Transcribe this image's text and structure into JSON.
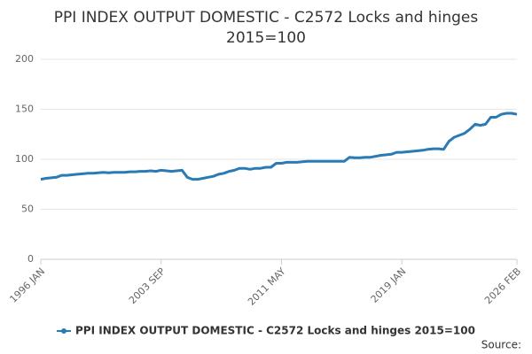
{
  "chart_data": {
    "type": "line",
    "title": [
      "PPI INDEX OUTPUT DOMESTIC - C2572 Locks and hinges",
      "2015=100"
    ],
    "source": "Source:",
    "x": [
      "1996 JAN",
      "1996 MAY",
      "1996 SEP",
      "1997 JAN",
      "1997 MAY",
      "1997 SEP",
      "1998 JAN",
      "1998 MAY",
      "1998 SEP",
      "1999 JAN",
      "1999 MAY",
      "1999 SEP",
      "2000 JAN",
      "2000 MAY",
      "2000 SEP",
      "2001 JAN",
      "2001 MAY",
      "2001 SEP",
      "2002 JAN",
      "2002 MAY",
      "2002 SEP",
      "2003 JAN",
      "2003 MAY",
      "2003 SEP",
      "2004 JAN",
      "2004 MAY",
      "2004 SEP",
      "2005 JAN",
      "2005 MAY",
      "2005 SEP",
      "2006 JAN",
      "2006 MAY",
      "2006 SEP",
      "2007 JAN",
      "2007 MAY",
      "2007 SEP",
      "2008 JAN",
      "2008 MAY",
      "2008 SEP",
      "2009 JAN",
      "2009 MAY",
      "2009 SEP",
      "2010 JAN",
      "2010 MAY",
      "2010 SEP",
      "2011 JAN",
      "2011 MAY",
      "2011 SEP",
      "2012 JAN",
      "2012 MAY",
      "2012 SEP",
      "2013 JAN",
      "2013 MAY",
      "2013 SEP",
      "2014 JAN",
      "2014 MAY",
      "2014 SEP",
      "2015 JAN",
      "2015 MAY",
      "2015 SEP",
      "2016 JAN",
      "2016 MAY",
      "2016 SEP",
      "2017 JAN",
      "2017 MAY",
      "2017 SEP",
      "2018 JAN",
      "2018 MAY",
      "2018 SEP",
      "2019 JAN",
      "2019 MAY",
      "2019 SEP",
      "2020 JAN",
      "2020 MAY",
      "2020 SEP",
      "2021 JAN",
      "2021 MAY",
      "2021 SEP",
      "2022 JAN",
      "2022 MAY",
      "2022 SEP",
      "2023 JAN",
      "2023 MAY",
      "2023 SEP",
      "2024 JAN",
      "2024 MAY",
      "2024 SEP",
      "2025 JAN",
      "2025 MAY",
      "2025 SEP",
      "2026 JAN",
      "2026 FEB"
    ],
    "series": [
      {
        "name": "PPI INDEX OUTPUT DOMESTIC - C2572 Locks and hinges 2015=100",
        "color": "#2a7ab6",
        "values": [
          80,
          81,
          81.5,
          82,
          84,
          84,
          84.5,
          85,
          85.5,
          86,
          86,
          86.5,
          87,
          86.5,
          87,
          87,
          87,
          87.5,
          87.5,
          88,
          88,
          88.5,
          88,
          89,
          88.5,
          88,
          88.5,
          89,
          82,
          80,
          80,
          81,
          82,
          83,
          85,
          86,
          88,
          89,
          91,
          91,
          90,
          91,
          91,
          92,
          92,
          96,
          96,
          97,
          97,
          97,
          97.5,
          98,
          98,
          98,
          98,
          98,
          98,
          98,
          98,
          102,
          101.5,
          101.5,
          102,
          102,
          103,
          104,
          104.5,
          105,
          107,
          107,
          107.5,
          108,
          108.5,
          109,
          110,
          110.5,
          110.5,
          110,
          118,
          122,
          124,
          126,
          130,
          135,
          134,
          135,
          142,
          142,
          145,
          146,
          146,
          145
        ]
      }
    ],
    "xticks": [
      "1996 JAN",
      "2003 SEP",
      "2011 MAY",
      "2019 JAN",
      "2026 FEB"
    ],
    "ylim": [
      0,
      200
    ],
    "yticks": [
      0,
      50,
      100,
      150,
      200
    ],
    "grid": true
  }
}
